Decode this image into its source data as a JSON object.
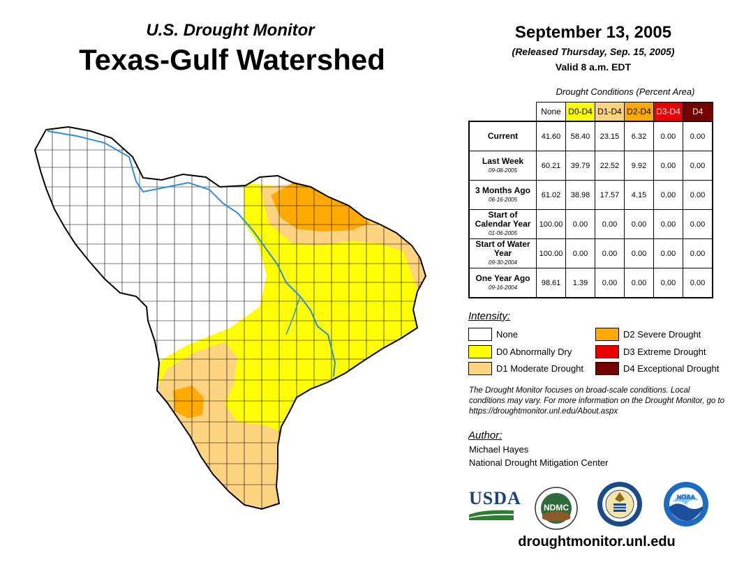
{
  "header": {
    "subtitle": "U.S. Drought Monitor",
    "title": "Texas-Gulf Watershed",
    "date": "September 13, 2005",
    "released": "(Released Thursday, Sep. 15, 2005)",
    "valid": "Valid 8 a.m. EDT"
  },
  "table": {
    "caption": "Drought Conditions (Percent Area)",
    "columns": [
      {
        "label": "None",
        "bg": "#ffffff",
        "fg": "#000000"
      },
      {
        "label": "D0-D4",
        "bg": "#ffff00",
        "fg": "#000000"
      },
      {
        "label": "D1-D4",
        "bg": "#fcd37f",
        "fg": "#000000"
      },
      {
        "label": "D2-D4",
        "bg": "#ffaa00",
        "fg": "#000000"
      },
      {
        "label": "D3-D4",
        "bg": "#e60000",
        "fg": "#ffffff"
      },
      {
        "label": "D4",
        "bg": "#730000",
        "fg": "#ffffff"
      }
    ],
    "rows": [
      {
        "label": "Current",
        "sub": "",
        "values": [
          "41.60",
          "58.40",
          "23.15",
          "6.32",
          "0.00",
          "0.00"
        ]
      },
      {
        "label": "Last Week",
        "sub": "09-08-2005",
        "values": [
          "60.21",
          "39.79",
          "22.52",
          "9.92",
          "0.00",
          "0.00"
        ]
      },
      {
        "label": "3 Months Ago",
        "sub": "06-16-2005",
        "values": [
          "61.02",
          "38.98",
          "17.57",
          "4.15",
          "0.00",
          "0.00"
        ]
      },
      {
        "label": "Start of Calendar Year",
        "sub": "01-06-2005",
        "values": [
          "100.00",
          "0.00",
          "0.00",
          "0.00",
          "0.00",
          "0.00"
        ]
      },
      {
        "label": "Start of Water Year",
        "sub": "09-30-2004",
        "values": [
          "100.00",
          "0.00",
          "0.00",
          "0.00",
          "0.00",
          "0.00"
        ]
      },
      {
        "label": "One Year Ago",
        "sub": "09-16-2004",
        "values": [
          "98.61",
          "1.39",
          "0.00",
          "0.00",
          "0.00",
          "0.00"
        ]
      }
    ]
  },
  "legend": {
    "title": "Intensity:",
    "items": [
      {
        "label": "None",
        "color": "#ffffff"
      },
      {
        "label": "D0 Abnormally Dry",
        "color": "#ffff00"
      },
      {
        "label": "D1 Moderate Drought",
        "color": "#fcd37f"
      },
      {
        "label": "D2 Severe Drought",
        "color": "#ffaa00"
      },
      {
        "label": "D3 Extreme Drought",
        "color": "#e60000"
      },
      {
        "label": "D4 Exceptional Drought",
        "color": "#730000"
      }
    ]
  },
  "note": "The Drought Monitor focuses on broad-scale conditions. Local conditions may vary. For more information on the Drought Monitor, go to https://droughtmonitor.unl.edu/About.aspx",
  "author": {
    "label": "Author:",
    "name": "Michael Hayes",
    "org": "National Drought Mitigation Center"
  },
  "logos": {
    "usda": "USDA",
    "ndmc": "NDMC",
    "noaa": "NOAA"
  },
  "url": "droughtmonitor.unl.edu",
  "map": {
    "river_color": "#2a8fd8",
    "boundary_color": "#000000"
  }
}
